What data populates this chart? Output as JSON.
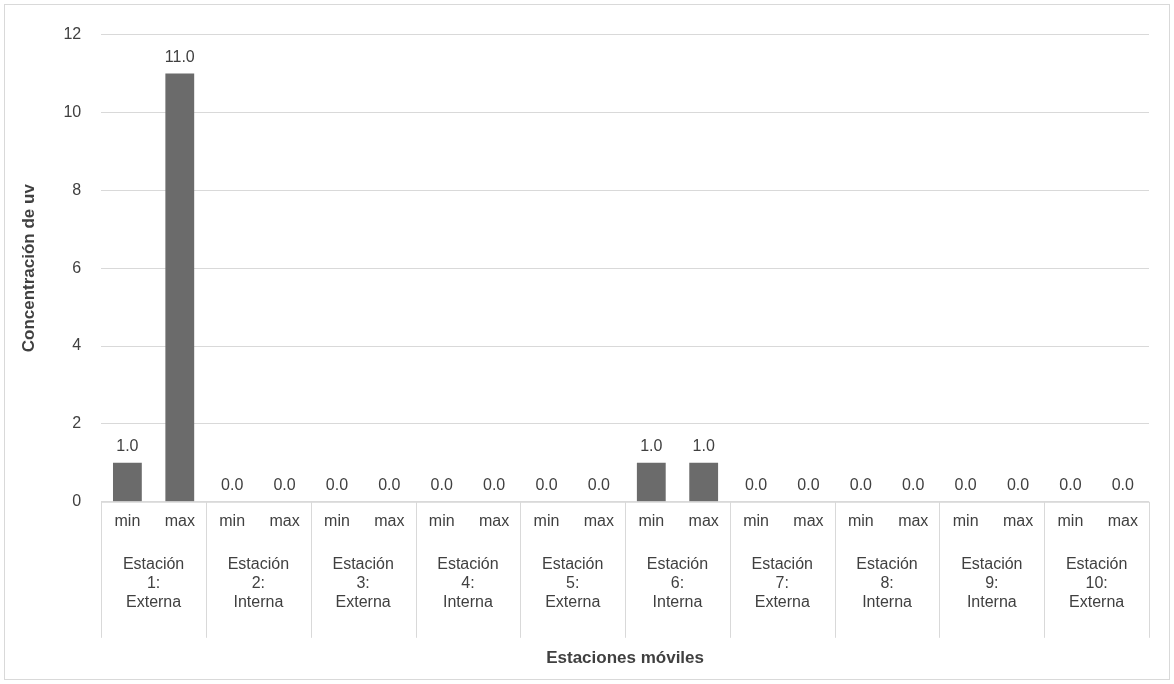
{
  "chart_data": {
    "type": "bar",
    "ylabel": "Concentración de uv",
    "categories": [
      "min",
      "max",
      "min",
      "max",
      "min",
      "max",
      "min",
      "max",
      "min",
      "max",
      "min",
      "max",
      "min",
      "max",
      "min",
      "max",
      "min",
      "max",
      "min",
      "max"
    ],
    "values": [
      1,
      11,
      0,
      0,
      0,
      0,
      0,
      0,
      0,
      0,
      1,
      1,
      0,
      0,
      0,
      0,
      0,
      0,
      0,
      0
    ],
    "value_labels": [
      "1.0",
      "11.0",
      "0.0",
      "0.0",
      "0.0",
      "0.0",
      "0.0",
      "0.0",
      "0.0",
      "0.0",
      "1.0",
      "1.0",
      "0.0",
      "0.0",
      "0.0",
      "0.0",
      "0.0",
      "0.0",
      "0.0",
      "0.0"
    ],
    "color": "#6b6b6b",
    "ylim": [
      0,
      12
    ],
    "yticks": [
      0,
      2,
      4,
      6,
      8,
      10,
      12
    ],
    "grid": "y",
    "legend": false,
    "annotations": [
      "Estación 1: Externa",
      "Estación 2: Interna",
      "Estación 3: Externa",
      "Estación 4: Interna",
      "Estación 5: Externa",
      "Estación 6: Interna",
      "Estación 7: Externa",
      "Estación 8: Interna",
      "Estación 9: Interna",
      "Estación 10: Externa",
      "Estaciones móviles"
    ]
  }
}
